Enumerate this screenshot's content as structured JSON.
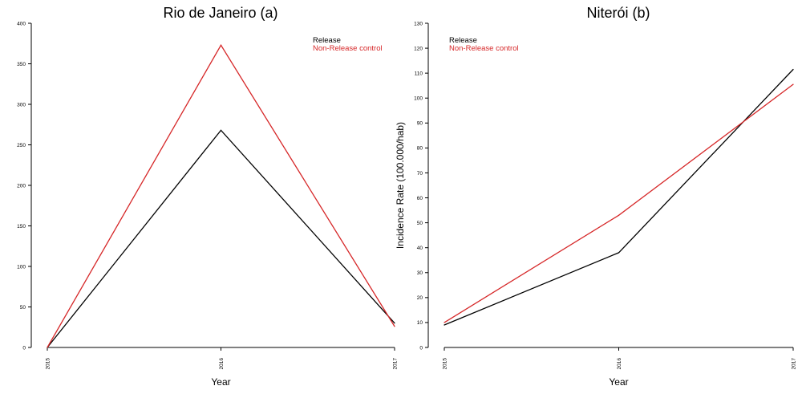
{
  "chart_data": [
    {
      "type": "line",
      "title": "Rio de Janeiro (a)",
      "xlabel": "Year",
      "ylabel": "",
      "x": [
        "2015",
        "2016",
        "2017"
      ],
      "ylim": [
        0,
        400
      ],
      "yticks": [
        0,
        50,
        100,
        150,
        200,
        250,
        300,
        350,
        400
      ],
      "series": [
        {
          "name": "Release",
          "color": "#000000",
          "values": [
            0,
            268,
            30
          ]
        },
        {
          "name": "Non-Release control",
          "color": "#d62728",
          "values": [
            0,
            373,
            26
          ]
        }
      ],
      "legend": "top-right"
    },
    {
      "type": "line",
      "title": "Niterói (b)",
      "xlabel": "Year",
      "ylabel": "Incidence Rate (100.000/hab)",
      "x": [
        "2015",
        "2016",
        "2017"
      ],
      "ylim": [
        0,
        130
      ],
      "yticks": [
        0,
        10,
        20,
        30,
        40,
        50,
        60,
        70,
        80,
        90,
        100,
        110,
        120,
        130
      ],
      "series": [
        {
          "name": "Release",
          "color": "#000000",
          "values": [
            9,
            38,
            111.5
          ]
        },
        {
          "name": "Non-Release control",
          "color": "#d62728",
          "values": [
            10,
            53,
            105.5
          ]
        }
      ],
      "legend": "top-left"
    }
  ]
}
